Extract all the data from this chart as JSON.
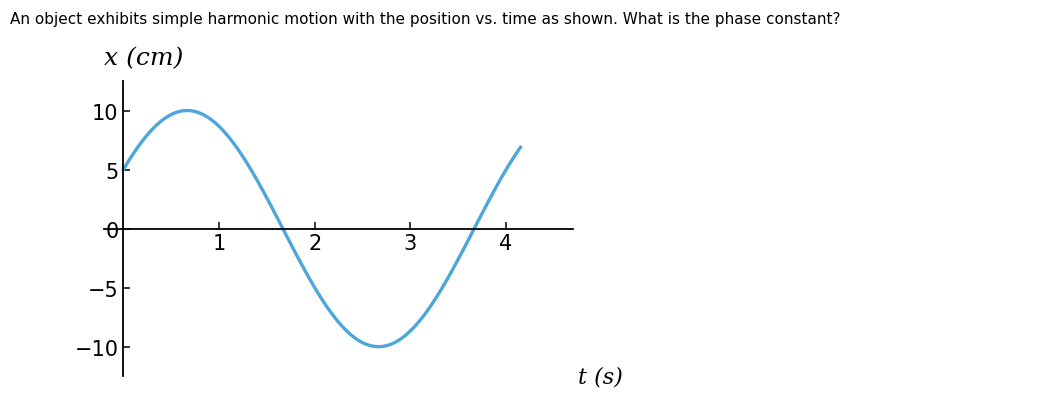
{
  "title_text": "An object exhibits simple harmonic motion with the position vs. time as shown. What is the phase constant?",
  "ylabel": "x (cm)",
  "xlabel": "t (s)",
  "amplitude": 10,
  "omega": 1.5707963267948966,
  "phase": 0.5235987755982988,
  "t_start": 0,
  "t_end": 4.15,
  "ylim": [
    -12.5,
    12.5
  ],
  "xlim": [
    -0.2,
    4.7
  ],
  "yticks": [
    -10,
    -5,
    0,
    5,
    10
  ],
  "xticks": [
    1,
    2,
    3,
    4
  ],
  "curve_color": "#4da6d9",
  "curve_linewidth": 2.4,
  "background_color": "#ffffff",
  "title_fontsize": 11,
  "ylabel_fontsize": 18,
  "xlabel_fontsize": 16,
  "tick_fontsize": 15
}
